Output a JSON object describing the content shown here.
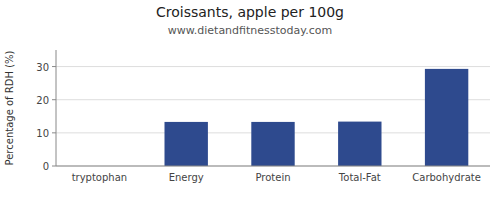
{
  "chart_data": {
    "type": "bar",
    "title": "Croissants, apple per 100g",
    "subtitle": "www.dietandfitnesstoday.com",
    "categories": [
      "tryptophan",
      "Energy",
      "Protein",
      "Total-Fat",
      "Carbohydrate"
    ],
    "values": [
      0,
      13.3,
      13.3,
      13.4,
      29.3
    ],
    "color": "#2e4a8e",
    "ylabel": "Percentage of RDH (%)",
    "ylim": [
      0,
      35
    ],
    "yticks": [
      0,
      10,
      20,
      30
    ],
    "grid": true
  }
}
